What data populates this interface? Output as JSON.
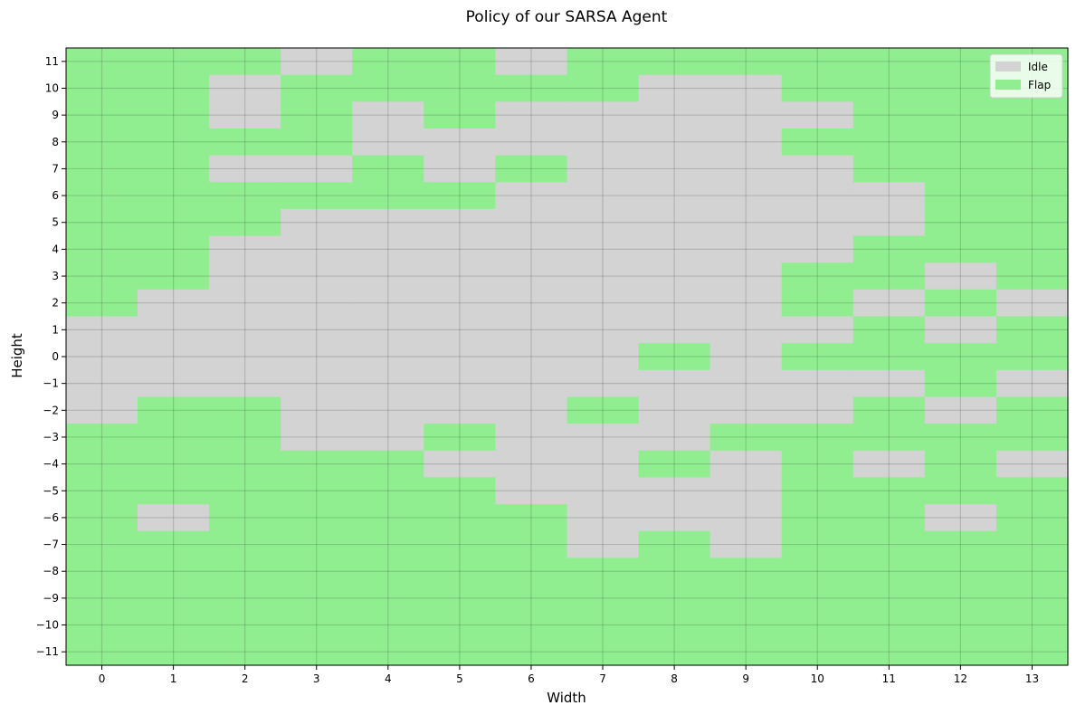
{
  "chart_data": {
    "type": "heatmap",
    "title": "Policy of our SARSA Agent",
    "xlabel": "Width",
    "ylabel": "Height",
    "x": [
      0,
      1,
      2,
      3,
      4,
      5,
      6,
      7,
      8,
      9,
      10,
      11,
      12,
      13
    ],
    "y": [
      11,
      10,
      9,
      8,
      7,
      6,
      5,
      4,
      3,
      2,
      1,
      0,
      -1,
      -2,
      -3,
      -4,
      -5,
      -6,
      -7,
      -8,
      -9,
      -10,
      -11
    ],
    "x_tick_labels": [
      "0",
      "1",
      "2",
      "3",
      "4",
      "5",
      "6",
      "7",
      "8",
      "9",
      "10",
      "11",
      "12",
      "13"
    ],
    "y_tick_labels": [
      "11",
      "10",
      "9",
      "8",
      "7",
      "6",
      "5",
      "4",
      "3",
      "2",
      "1",
      "0",
      "−1",
      "−2",
      "−3",
      "−4",
      "−5",
      "−6",
      "−7",
      "−8",
      "−9",
      "−10",
      "−11"
    ],
    "classes": [
      {
        "value": 0,
        "name": "Idle",
        "color": "#d3d3d3"
      },
      {
        "value": 1,
        "name": "Flap",
        "color": "#90ee90"
      }
    ],
    "grid": true,
    "legend": "top-right",
    "values": [
      [
        1,
        1,
        1,
        0,
        1,
        1,
        0,
        1,
        1,
        1,
        1,
        1,
        1,
        1
      ],
      [
        1,
        1,
        0,
        1,
        1,
        1,
        1,
        1,
        0,
        0,
        1,
        1,
        1,
        1
      ],
      [
        1,
        1,
        0,
        1,
        0,
        1,
        0,
        0,
        0,
        0,
        0,
        1,
        1,
        1
      ],
      [
        1,
        1,
        1,
        1,
        0,
        0,
        0,
        0,
        0,
        0,
        1,
        1,
        1,
        1
      ],
      [
        1,
        1,
        0,
        0,
        1,
        0,
        1,
        0,
        0,
        0,
        0,
        1,
        1,
        1
      ],
      [
        1,
        1,
        1,
        1,
        1,
        1,
        0,
        0,
        0,
        0,
        0,
        0,
        1,
        1
      ],
      [
        1,
        1,
        1,
        0,
        0,
        0,
        0,
        0,
        0,
        0,
        0,
        0,
        1,
        1
      ],
      [
        1,
        1,
        0,
        0,
        0,
        0,
        0,
        0,
        0,
        0,
        0,
        1,
        1,
        1
      ],
      [
        1,
        1,
        0,
        0,
        0,
        0,
        0,
        0,
        0,
        0,
        1,
        1,
        0,
        1
      ],
      [
        1,
        0,
        0,
        0,
        0,
        0,
        0,
        0,
        0,
        0,
        1,
        0,
        1,
        0
      ],
      [
        0,
        0,
        0,
        0,
        0,
        0,
        0,
        0,
        0,
        0,
        0,
        1,
        0,
        1
      ],
      [
        0,
        0,
        0,
        0,
        0,
        0,
        0,
        0,
        1,
        0,
        1,
        1,
        1,
        1
      ],
      [
        0,
        0,
        0,
        0,
        0,
        0,
        0,
        0,
        0,
        0,
        0,
        0,
        1,
        0
      ],
      [
        0,
        1,
        1,
        0,
        0,
        0,
        0,
        1,
        0,
        0,
        0,
        1,
        0,
        1
      ],
      [
        1,
        1,
        1,
        0,
        0,
        1,
        0,
        0,
        0,
        1,
        1,
        1,
        1,
        1
      ],
      [
        1,
        1,
        1,
        1,
        1,
        0,
        0,
        0,
        1,
        0,
        1,
        0,
        1,
        0
      ],
      [
        1,
        1,
        1,
        1,
        1,
        1,
        0,
        0,
        0,
        0,
        1,
        1,
        1,
        1
      ],
      [
        1,
        0,
        1,
        1,
        1,
        1,
        1,
        0,
        0,
        0,
        1,
        1,
        0,
        1
      ],
      [
        1,
        1,
        1,
        1,
        1,
        1,
        1,
        0,
        1,
        0,
        1,
        1,
        1,
        1
      ],
      [
        1,
        1,
        1,
        1,
        1,
        1,
        1,
        1,
        1,
        1,
        1,
        1,
        1,
        1
      ],
      [
        1,
        1,
        1,
        1,
        1,
        1,
        1,
        1,
        1,
        1,
        1,
        1,
        1,
        1
      ],
      [
        1,
        1,
        1,
        1,
        1,
        1,
        1,
        1,
        1,
        1,
        1,
        1,
        1,
        1
      ],
      [
        1,
        1,
        1,
        1,
        1,
        1,
        1,
        1,
        1,
        1,
        1,
        1,
        1,
        1
      ]
    ]
  }
}
